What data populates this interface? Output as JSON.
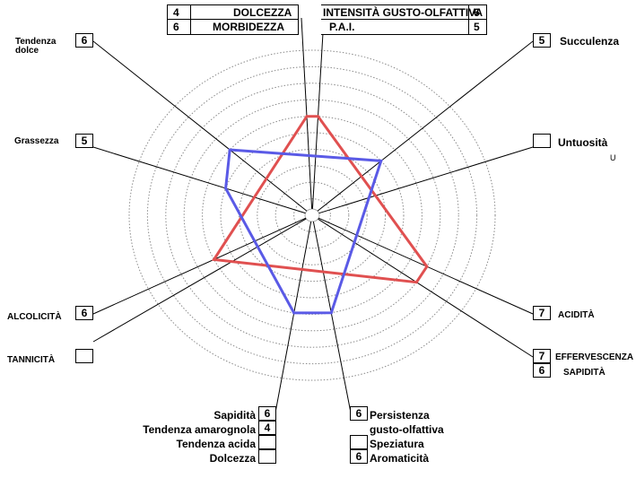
{
  "chart_data": {
    "type": "radar",
    "rings": 10,
    "axes": [
      {
        "key": "tendenza_dolce",
        "label": "Tendenza dolce",
        "value": 6
      },
      {
        "key": "intensita",
        "label": "INTENSITÀ GUSTO-OLFATTIVA",
        "value": 6
      },
      {
        "key": "succulenza",
        "label": "Succulenza",
        "value": 5
      },
      {
        "key": "untuosita",
        "label": "Untuosità",
        "value": null
      },
      {
        "key": "acidita",
        "label": "ACIDITÀ",
        "value": 7
      },
      {
        "key": "effervescenza",
        "label": "EFFERVESCENZA",
        "value": 7
      },
      {
        "key": "persistenza",
        "label": "Persistenza gusto-olfattiva",
        "value": 6
      },
      {
        "key": "sapidita",
        "label": "Sapidità",
        "value": 6
      },
      {
        "key": "tannicita",
        "label": "TANNICITÀ",
        "value": null
      },
      {
        "key": "alcolicita",
        "label": "ALCOLICITÀ",
        "value": 6
      },
      {
        "key": "grassezza",
        "label": "Grassezza",
        "value": 5
      },
      {
        "key": "morbidezza",
        "label": "MORBIDEZZA",
        "value": 6
      }
    ],
    "series": [
      {
        "key": "red",
        "color": "#e05050",
        "points": [
          {
            "axis": "morbidezza",
            "r": 6
          },
          {
            "axis": "intensita",
            "r": 6
          },
          {
            "axis": "acidita",
            "r": 7
          },
          {
            "axis": "effervescenza",
            "r": 7
          },
          {
            "axis": "alcolicita",
            "r": 6
          }
        ]
      },
      {
        "key": "blue",
        "color": "#5a5ae6",
        "points": [
          {
            "axis": "tendenza_dolce",
            "r": 6
          },
          {
            "axis": "succulenza",
            "r": 5
          },
          {
            "axis": "persistenza",
            "r": 6
          },
          {
            "axis": "sapidita",
            "r": 6
          },
          {
            "axis": "grassezza",
            "r": 5
          }
        ]
      }
    ]
  },
  "labels": {
    "tendenza_dolce_1": "Tendenza",
    "tendenza_dolce_2": "dolce",
    "grassezza": "Grassezza",
    "alcolicita": "ALCOLICITÀ",
    "tannicita": "TANNICITÀ",
    "succulenza": "Succulenza",
    "untuosita": "Untuosità",
    "untuosita_suffix": "U",
    "acidita": "ACIDITÀ",
    "effervescenza": "EFFERVESCENZA",
    "sapidita_right": "SAPIDITÀ",
    "dolcezza_top": "DOLCEZZA",
    "morbidezza": "MORBIDEZZA",
    "intensita": "INTENSITÀ GUSTO-OLFATTIVA",
    "pai": "P.A.I."
  },
  "values": {
    "tendenza_dolce": "6",
    "grassezza": "5",
    "alcolicita": "6",
    "tannicita": "",
    "succulenza": "5",
    "untuosita": "",
    "acidita": "7",
    "effervescenza": "7",
    "sapidita_right": "6",
    "dolcezza_top": "4",
    "morbidezza": "6",
    "intensita": "6",
    "pai": "5"
  },
  "bottom_left": [
    {
      "label": "Sapidità",
      "value": "6"
    },
    {
      "label": "Tendenza amarognola",
      "value": "4"
    },
    {
      "label": "Tendenza acida",
      "value": ""
    },
    {
      "label": "Dolcezza",
      "value": ""
    }
  ],
  "bottom_right": {
    "persistenza_value": "6",
    "persistenza_1": "Persistenza",
    "persistenza_2": "gusto-olfattiva",
    "speziatura_value": "",
    "speziatura": "Speziatura",
    "aromaticita_value": "6",
    "aromaticita": "Aromaticità"
  }
}
